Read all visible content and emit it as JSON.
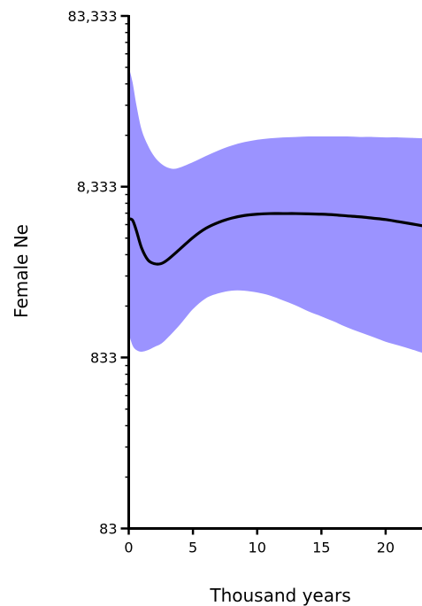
{
  "chart_data": {
    "type": "area",
    "title": "",
    "xlabel": "Thousand years",
    "ylabel": "Female Ne",
    "x_scale": "linear",
    "y_scale": "log",
    "xlim": [
      0,
      23
    ],
    "ylim": [
      83,
      83333
    ],
    "x_ticks": [
      0,
      5,
      10,
      15,
      20
    ],
    "x_tick_labels": [
      "0",
      "5",
      "10",
      "15",
      "20"
    ],
    "y_ticks": [
      83,
      833,
      8333,
      83333
    ],
    "y_tick_labels": [
      "83",
      "833",
      "8,333",
      "83,333"
    ],
    "grid": false,
    "legend": "none",
    "colors": {
      "band": "#9b93ff",
      "median": "#000000",
      "axis": "#000000"
    },
    "series": [
      {
        "role": "median",
        "x": [
          0,
          0.3,
          0.6,
          1,
          1.5,
          2,
          2.5,
          3,
          4,
          5,
          6,
          7,
          8,
          9,
          10,
          11,
          12,
          13,
          14,
          15,
          16,
          17,
          18,
          19,
          20,
          21,
          22,
          23
        ],
        "y": [
          5400,
          5300,
          4600,
          3650,
          3100,
          2950,
          2950,
          3100,
          3600,
          4200,
          4750,
          5150,
          5450,
          5650,
          5750,
          5800,
          5800,
          5800,
          5780,
          5750,
          5700,
          5620,
          5550,
          5450,
          5350,
          5200,
          5050,
          4900
        ]
      },
      {
        "role": "upper-bound",
        "x": [
          0,
          0.3,
          0.6,
          1,
          1.5,
          2,
          2.5,
          3,
          3.5,
          4,
          5,
          6,
          7,
          8,
          9,
          10,
          11,
          12,
          13,
          14,
          15,
          16,
          17,
          18,
          19,
          20,
          21,
          22,
          23
        ],
        "y": [
          42000,
          34000,
          25000,
          18000,
          14500,
          12500,
          11400,
          10800,
          10600,
          10800,
          11600,
          12600,
          13600,
          14500,
          15200,
          15700,
          16000,
          16200,
          16300,
          16400,
          16400,
          16400,
          16400,
          16300,
          16300,
          16200,
          16200,
          16100,
          16000
        ]
      },
      {
        "role": "lower-bound",
        "x": [
          0,
          0.3,
          0.6,
          1,
          1.5,
          2,
          2.5,
          3,
          4,
          5,
          6,
          7,
          8,
          9,
          10,
          11,
          12,
          13,
          14,
          15,
          16,
          17,
          18,
          19,
          20,
          21,
          22,
          23
        ],
        "y": [
          1150,
          980,
          920,
          900,
          920,
          960,
          1000,
          1080,
          1300,
          1600,
          1850,
          1980,
          2050,
          2050,
          2000,
          1920,
          1800,
          1680,
          1550,
          1450,
          1350,
          1250,
          1170,
          1100,
          1030,
          980,
          930,
          880
        ]
      }
    ]
  }
}
